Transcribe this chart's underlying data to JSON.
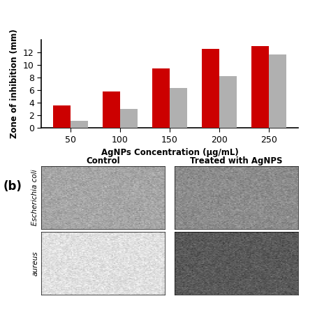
{
  "categories": [
    50,
    100,
    150,
    200,
    250
  ],
  "red_values": [
    3.6,
    5.85,
    9.5,
    12.5,
    13.0
  ],
  "gray_values": [
    1.1,
    3.0,
    6.4,
    8.2,
    11.7
  ],
  "bar_color_red": "#cc0000",
  "bar_color_gray": "#b0b0b0",
  "ylabel": "Zone of inhibition (mm)",
  "xlabel": "AgNPs Concentration (μg/mL)",
  "ylim": [
    0,
    14
  ],
  "yticks": [
    0,
    2,
    4,
    6,
    8,
    10,
    12
  ],
  "bar_width": 0.35,
  "label_b": "(b)",
  "col1_label": "Control",
  "col2_label": "Treated with AgNPS",
  "row1_label": "Escherichia coli",
  "row2_label": "aureus",
  "bg_color": "#ffffff"
}
